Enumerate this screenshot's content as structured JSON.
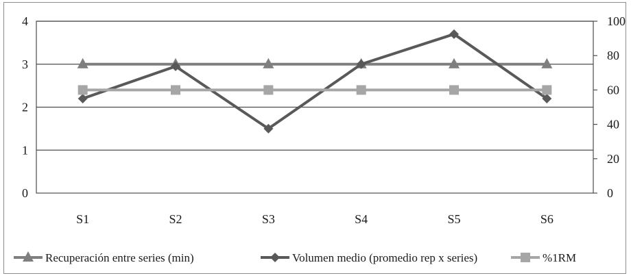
{
  "chart_data": {
    "type": "line",
    "categories": [
      "S1",
      "S2",
      "S3",
      "S4",
      "S5",
      "S6"
    ],
    "y_left": {
      "min": 0,
      "max": 4,
      "ticks": [
        0,
        1,
        2,
        3,
        4
      ]
    },
    "y_right": {
      "min": 0,
      "max": 100,
      "ticks": [
        0,
        20,
        40,
        60,
        80,
        100
      ]
    },
    "grid": "horizontal",
    "legend_position": "bottom",
    "series": [
      {
        "name": "Recuperación entre series (min)",
        "axis": "left",
        "marker": "triangle",
        "color": "#7f7f7f",
        "values": [
          3,
          3,
          3,
          3,
          3,
          3
        ]
      },
      {
        "name": "Volumen medio (promedio rep x series)",
        "axis": "left",
        "marker": "diamond",
        "color": "#595959",
        "values": [
          2.2,
          2.95,
          1.5,
          3.0,
          3.7,
          2.2
        ]
      },
      {
        "name": "%1RM",
        "axis": "right",
        "marker": "square",
        "color": "#a6a6a6",
        "values": [
          60,
          60,
          60,
          60,
          60,
          60
        ]
      }
    ]
  }
}
